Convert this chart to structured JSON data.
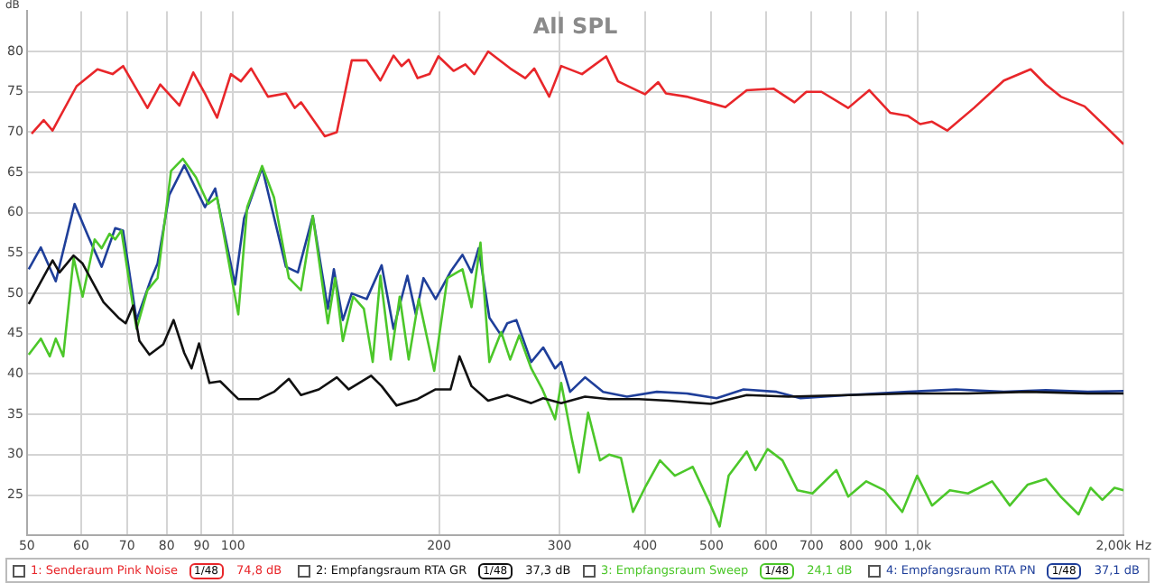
{
  "chart_data": {
    "type": "line",
    "title": "All SPL",
    "ylabel": "dB",
    "log": "x",
    "grid": true,
    "legend": "bottom",
    "marker": "none",
    "line_style": "solid",
    "xlim": [
      50,
      2000
    ],
    "xticks": [
      50,
      60,
      70,
      80,
      90,
      100,
      200,
      300,
      400,
      500,
      600,
      700,
      800,
      900,
      {
        "value": 1000,
        "label": "1,0k"
      },
      {
        "value": 2000,
        "label": "2,00k Hz"
      }
    ],
    "ylim": [
      20,
      85
    ],
    "yticks": [
      25,
      30,
      35,
      40,
      45,
      50,
      55,
      60,
      65,
      70,
      75,
      80
    ],
    "annotations": [
      "1/48",
      "74,8 dB",
      "1/48",
      "37,3 dB",
      "1/48",
      "24,1 dB",
      "1/48",
      "37,1 dB"
    ],
    "series": [
      {
        "name": "1: Senderaum Pink Noise",
        "color": "#e8262a",
        "x": [
          50.8,
          52.9,
          54.5,
          59.1,
          63.4,
          66.7,
          69.1,
          75,
          78.3,
          83.5,
          87.5,
          91,
          94.8,
          99.3,
          102.7,
          106.3,
          112.5,
          119.5,
          123.1,
          125.7,
          136.2,
          141.8,
          149.1,
          156.8,
          164.2,
          171.6,
          176.3,
          180.6,
          186.1,
          193.7,
          199.6,
          210,
          218.5,
          225.2,
          235.9,
          254.1,
          267.3,
          275.5,
          289.7,
          301.6,
          323.5,
          350.9,
          365.1,
          399.7,
          418,
          429,
          460,
          494,
          524,
          563,
          616,
          661,
          688,
          724,
          792,
          850,
          912,
          969,
          1009,
          1050,
          1105,
          1209,
          1337,
          1463,
          1540,
          1619,
          1754,
          1882,
          2000
        ],
        "values": [
          69.8,
          71.5,
          70.2,
          75.7,
          77.8,
          77.2,
          78.2,
          73,
          75.9,
          73.3,
          77.4,
          74.8,
          71.8,
          77.2,
          76.3,
          77.9,
          74.4,
          74.8,
          73,
          73.7,
          69.5,
          70,
          78.9,
          78.9,
          76.4,
          79.5,
          78.2,
          79,
          76.7,
          77.2,
          79.4,
          77.6,
          78.4,
          77.2,
          80,
          77.9,
          76.7,
          77.9,
          74.4,
          78.2,
          77.2,
          79.4,
          76.3,
          74.7,
          76.2,
          74.8,
          74.4,
          73.7,
          73.1,
          75.2,
          75.4,
          73.7,
          75,
          75,
          73,
          75.2,
          72.4,
          72,
          71,
          71.3,
          70.2,
          73,
          76.4,
          77.8,
          75.9,
          74.4,
          73.2,
          70.7,
          68.5
        ]
      },
      {
        "name": "2: Empfangsraum RTA GR",
        "color": "#111111",
        "x": [
          50.3,
          54.5,
          55.8,
          58.5,
          60.3,
          64.7,
          68,
          69.7,
          71.5,
          73,
          75.5,
          79.1,
          81.9,
          84.9,
          87,
          89.2,
          92.4,
          95.8,
          101.8,
          109.1,
          114.8,
          120.7,
          125.7,
          133.5,
          141.8,
          147.6,
          159.1,
          164.9,
          173.4,
          186.1,
          197.7,
          207.9,
          214.2,
          223.1,
          235.9,
          251.6,
          272.7,
          283.9,
          301.6,
          326.8,
          354.3,
          391.8,
          433.3,
          498.9,
          563,
          647.7,
          792,
          969,
          1185,
          1449,
          1772,
          2000
        ],
        "values": [
          48.7,
          54.1,
          52.6,
          54.7,
          53.7,
          48.9,
          47,
          46.3,
          48.5,
          44.1,
          42.4,
          43.7,
          46.7,
          42.6,
          40.7,
          43.8,
          38.9,
          39.1,
          36.9,
          36.9,
          37.8,
          39.4,
          37.4,
          38.1,
          39.6,
          38.1,
          39.8,
          38.5,
          36.1,
          36.9,
          38.1,
          38.1,
          42.2,
          38.5,
          36.7,
          37.4,
          36.4,
          37,
          36.4,
          37.2,
          36.9,
          36.9,
          36.7,
          36.3,
          37.4,
          37.2,
          37.4,
          37.6,
          37.6,
          37.8,
          37.6,
          37.6
        ]
      },
      {
        "name": "3: Empfangsraum Sweep",
        "color": "#4cc72a",
        "x": [
          50.3,
          52.4,
          54,
          55.1,
          56.5,
          58.5,
          60.3,
          62.8,
          64.3,
          66,
          67.3,
          68.7,
          72.3,
          75,
          77.6,
          81.2,
          84.5,
          88.3,
          92,
          94.8,
          101.8,
          104.9,
          110.3,
          114.8,
          120.7,
          125.7,
          130.8,
          137.6,
          141,
          144.7,
          149.8,
          155.3,
          160,
          164.2,
          170,
          175.2,
          180.6,
          186.8,
          196.8,
          205.7,
          216.4,
          223.1,
          229.9,
          236.9,
          246.5,
          254.1,
          261.9,
          272.7,
          282.8,
          295.5,
          301.6,
          312.7,
          320.3,
          330.2,
          343.7,
          354.3,
          368.8,
          384,
          399.7,
          420.5,
          442.1,
          469.5,
          498.9,
          514,
          529.8,
          563,
          580,
          603.9,
          634.9,
          667.6,
          702.3,
          761.1,
          792,
          841.7,
          893.9,
          949.9,
          998.9,
          1050,
          1115,
          1185,
          1285,
          1364,
          1449,
          1540,
          1619,
          1719,
          1790,
          1862,
          1940,
          2000
        ],
        "values": [
          42.4,
          44.4,
          42.2,
          44.4,
          42.2,
          54.4,
          49.6,
          56.7,
          55.6,
          57.4,
          56.7,
          57.8,
          45.6,
          50.4,
          51.9,
          65.2,
          66.7,
          64.4,
          61.1,
          61.9,
          47.4,
          60.7,
          65.8,
          61.9,
          51.9,
          50.4,
          59.6,
          46.3,
          51.9,
          44.1,
          49.6,
          48.1,
          41.5,
          52.2,
          41.8,
          49.6,
          41.8,
          49.3,
          40.4,
          51.9,
          53,
          48.3,
          56.3,
          41.5,
          45.2,
          41.8,
          44.8,
          40.7,
          38.2,
          34.4,
          38.9,
          31.9,
          27.8,
          35.2,
          29.3,
          30,
          29.6,
          22.9,
          25.9,
          29.3,
          27.4,
          28.5,
          23.7,
          21.1,
          27.4,
          30.4,
          28.1,
          30.7,
          29.3,
          25.6,
          25.2,
          28.1,
          24.8,
          26.7,
          25.6,
          22.9,
          27.4,
          23.7,
          25.6,
          25.2,
          26.7,
          23.7,
          26.3,
          27,
          24.8,
          22.6,
          25.9,
          24.4,
          25.9,
          25.6
        ]
      },
      {
        "name": "4: Empfangsraum RTA PN",
        "color": "#1f3f9a",
        "x": [
          50.3,
          52.4,
          55.1,
          58.7,
          61.5,
          64.3,
          67.3,
          69.1,
          72.3,
          76,
          77.6,
          80.7,
          84.9,
          91,
          94.2,
          100.7,
          103.8,
          110.3,
          119.5,
          124.4,
          130.8,
          137.6,
          140.4,
          144.7,
          149.1,
          156.8,
          164.9,
          171.6,
          179.8,
          185,
          189.8,
          197.7,
          207.9,
          216.4,
          223.1,
          228.5,
          236.9,
          246.5,
          251.6,
          259.4,
          272.7,
          283.9,
          295.5,
          301.6,
          310.8,
          326.8,
          347.3,
          376.3,
          416.1,
          460,
          508.8,
          557,
          622.4,
          674.6,
          792,
          969,
          1138.6,
          1337,
          1540,
          1772,
          2000
        ],
        "values": [
          53,
          55.7,
          51.5,
          61.1,
          57,
          53.3,
          58.1,
          57.8,
          46.7,
          51.9,
          53.7,
          62.2,
          65.9,
          60.7,
          63,
          51.1,
          59.3,
          65.6,
          53.3,
          52.6,
          59.6,
          48.1,
          53,
          46.7,
          50,
          49.3,
          53.5,
          45.6,
          52.2,
          47.4,
          51.9,
          49.3,
          52.7,
          54.8,
          52.6,
          55.6,
          47,
          44.8,
          46.3,
          46.7,
          41.5,
          43.3,
          40.7,
          41.5,
          37.8,
          39.6,
          37.8,
          37.2,
          37.8,
          37.6,
          37,
          38.1,
          37.8,
          37,
          37.4,
          37.8,
          38.1,
          37.8,
          38,
          37.8,
          37.9
        ]
      }
    ]
  }
}
